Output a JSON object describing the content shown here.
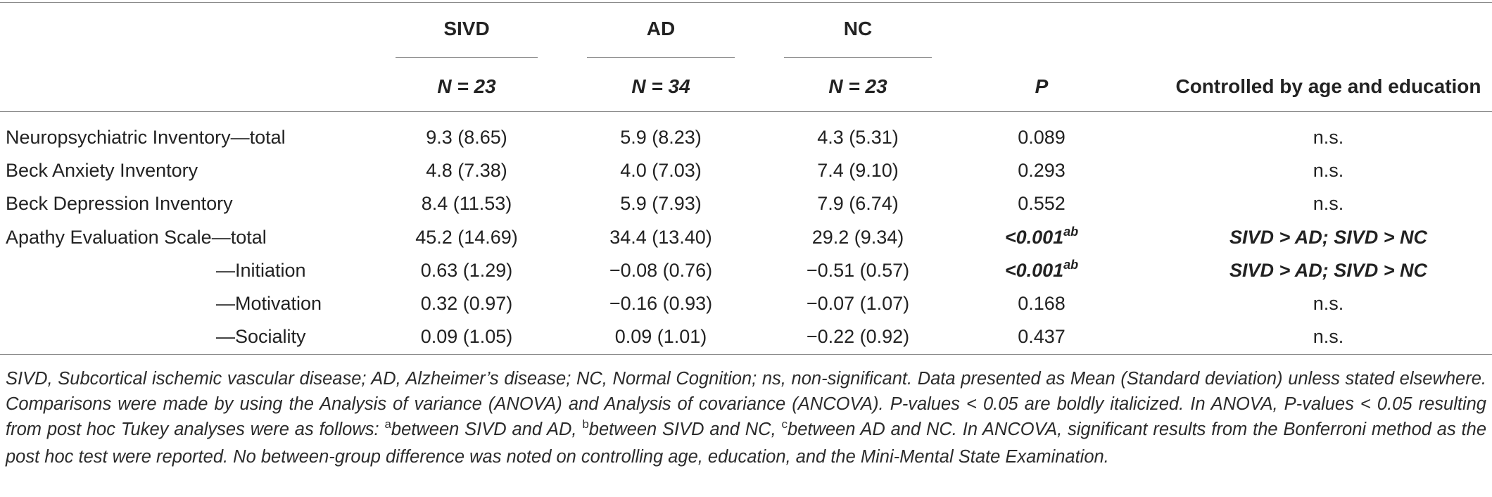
{
  "table": {
    "groups": [
      {
        "name": "SIVD",
        "n": "N = 23"
      },
      {
        "name": "AD",
        "n": "N = 34"
      },
      {
        "name": "NC",
        "n": "N = 23"
      }
    ],
    "p_header": "P",
    "controlled_header": "Controlled by age and education",
    "rows": [
      {
        "label": "Neuropsychiatric Inventory—total",
        "sivd": "9.3 (8.65)",
        "ad": "5.9 (8.23)",
        "nc": "4.3 (5.31)",
        "p": "0.089",
        "p_sup": "",
        "controlled": "n.s."
      },
      {
        "label": "Beck Anxiety Inventory",
        "sivd": "4.8 (7.38)",
        "ad": "4.0 (7.03)",
        "nc": "7.4 (9.10)",
        "p": "0.293",
        "p_sup": "",
        "controlled": "n.s."
      },
      {
        "label": "Beck Depression Inventory",
        "sivd": "8.4 (11.53)",
        "ad": "5.9 (7.93)",
        "nc": "7.9 (6.74)",
        "p": "0.552",
        "p_sup": "",
        "controlled": "n.s."
      },
      {
        "label": "Apathy Evaluation Scale—total",
        "sivd": "45.2 (14.69)",
        "ad": "34.4 (13.40)",
        "nc": "29.2 (9.34)",
        "p": "<0.001",
        "p_sup": "ab",
        "controlled": "SIVD > AD; SIVD > NC"
      },
      {
        "label": "—Initiation",
        "sivd": "0.63 (1.29)",
        "ad": "−0.08 (0.76)",
        "nc": "−0.51 (0.57)",
        "p": "<0.001",
        "p_sup": "ab",
        "controlled": "SIVD > AD; SIVD > NC"
      },
      {
        "label": "—Motivation",
        "sivd": "0.32 (0.97)",
        "ad": "−0.16 (0.93)",
        "nc": "−0.07 (1.07)",
        "p": "0.168",
        "p_sup": "",
        "controlled": "n.s."
      },
      {
        "label": "—Sociality",
        "sivd": "0.09 (1.05)",
        "ad": "0.09 (1.01)",
        "nc": "−0.22 (0.92)",
        "p": "0.437",
        "p_sup": "",
        "controlled": "n.s."
      }
    ]
  },
  "footnote": {
    "part1": "SIVD, Subcortical ischemic vascular disease; AD, Alzheimer’s disease; NC, Normal Cognition; ns, non-significant. Data presented as Mean (Standard deviation) unless stated elsewhere. Comparisons were made by using the Analysis of variance (ANOVA) and Analysis of covariance (ANCOVA). P-values < 0.05 are boldly italicized. In ANOVA, P-values < 0.05 resulting from post hoc Tukey analyses were as follows: ",
    "sup_a": "a",
    "part2": "between SIVD and AD, ",
    "sup_b": "b",
    "part3": "between SIVD and NC, ",
    "sup_c": "c",
    "part4": "between AD and NC. In ANCOVA, significant results from the Bonferroni method as the post hoc test were reported. No between-group difference was noted on controlling age, education, and the Mini-Mental State Examination."
  }
}
